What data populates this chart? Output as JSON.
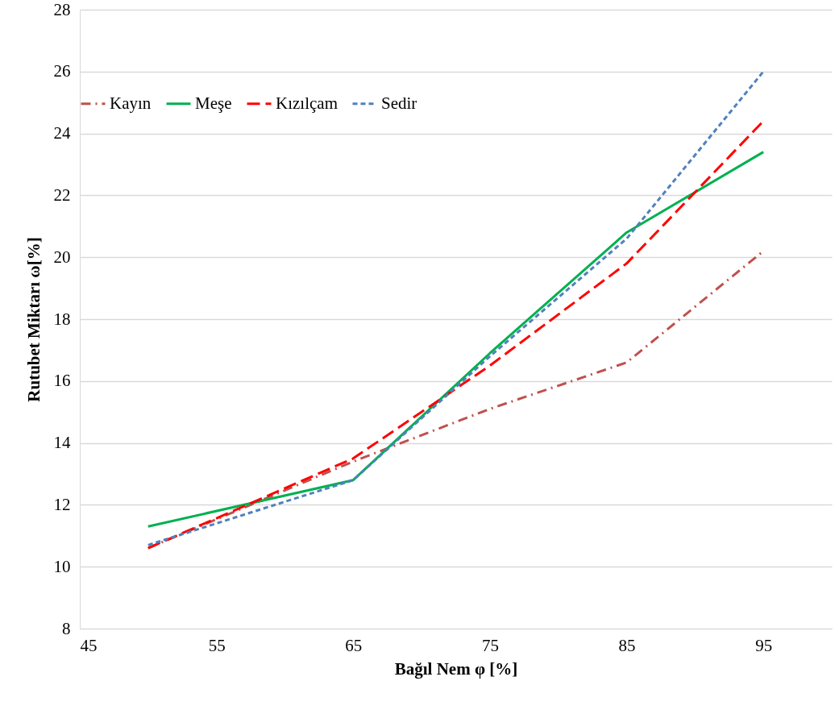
{
  "chart_data": {
    "type": "line",
    "xlabel": "Bağıl Nem φ [%]",
    "ylabel": "Rutubet Miktarı ω[%]",
    "x": [
      50,
      65,
      75,
      85,
      95
    ],
    "series": [
      {
        "name": "Kayın",
        "color": "#c0504d",
        "line_style": "dashdot",
        "values": [
          10.6,
          13.4,
          15.1,
          16.6,
          20.2
        ]
      },
      {
        "name": "Meşe",
        "color": "#00b050",
        "line_style": "solid",
        "values": [
          11.3,
          12.8,
          16.9,
          20.8,
          23.4
        ]
      },
      {
        "name": "Kızılçam",
        "color": "#ff0000",
        "line_style": "dashed",
        "values": [
          10.6,
          13.5,
          16.5,
          19.8,
          24.4
        ]
      },
      {
        "name": "Sedir",
        "color": "#4f81bd",
        "line_style": "dotted",
        "values": [
          10.7,
          12.8,
          16.8,
          20.6,
          26.0
        ]
      }
    ],
    "xlim": [
      45,
      100
    ],
    "xticks": [
      45,
      55,
      65,
      75,
      85,
      95
    ],
    "ylim": [
      8,
      28
    ],
    "yticks": [
      8,
      10,
      12,
      14,
      16,
      18,
      20,
      22,
      24,
      26,
      28
    ],
    "grid": "y",
    "legend": "top left",
    "marker": "none"
  }
}
